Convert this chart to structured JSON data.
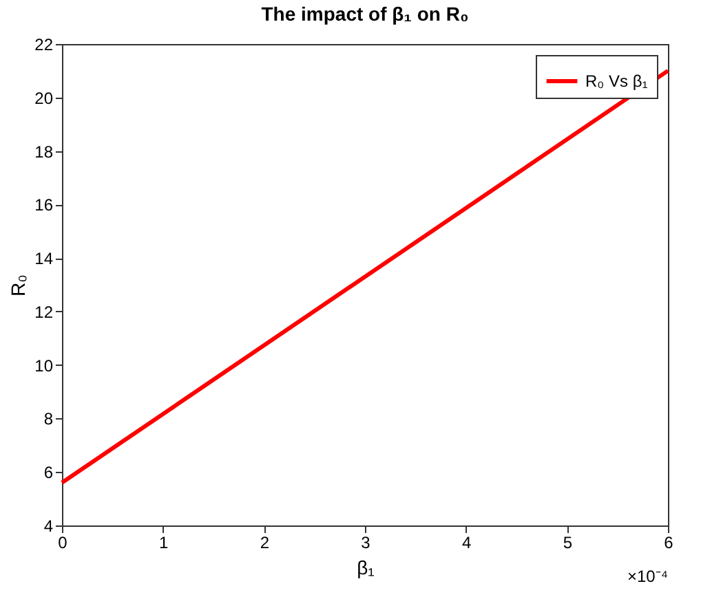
{
  "chart_data": {
    "type": "line",
    "title": "The impact of β₁ on R₀",
    "xlabel": "β₁",
    "ylabel": "R₀",
    "x": [
      0,
      6
    ],
    "series": [
      {
        "name": "R₀ Vs β₁",
        "color": "#ff0000",
        "values": [
          5.6,
          21.0
        ]
      }
    ],
    "xlim": [
      0,
      6
    ],
    "xticks": [
      0,
      1,
      2,
      3,
      4,
      5,
      6
    ],
    "ylim": [
      4,
      22
    ],
    "yticks": [
      4,
      6,
      8,
      10,
      12,
      14,
      16,
      18,
      20,
      22
    ],
    "annotations": [
      "×10⁻⁴"
    ],
    "legend": "top right",
    "line_style": "solid"
  }
}
